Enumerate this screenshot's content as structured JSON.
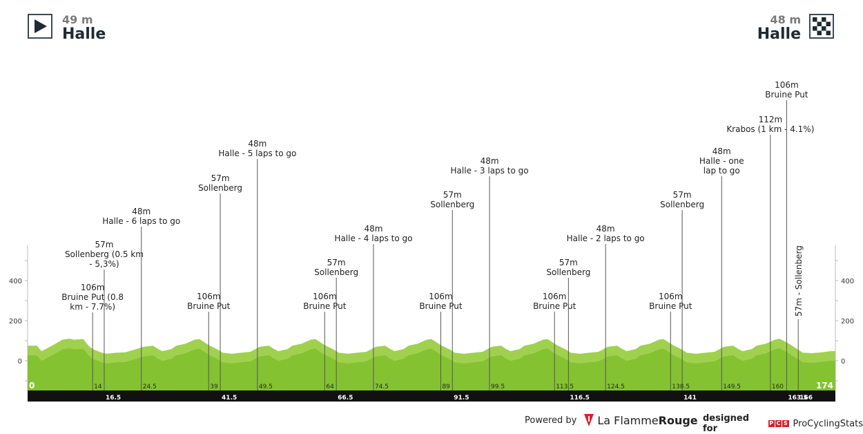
{
  "header": {
    "start_altitude": "49 m",
    "start_city": "Halle",
    "finish_altitude": "48 m",
    "finish_city": "Halle",
    "start_icon": "play-triangle-icon",
    "finish_icon": "checkered-flag-icon"
  },
  "footer": {
    "powered_by": "Powered by",
    "brand_a": "La Flamme",
    "brand_b": "Rouge",
    "designed_for": "designed for",
    "pcs_letters": [
      "P",
      "C",
      "S"
    ],
    "pcs_name": "ProCyclingStats"
  },
  "colors": {
    "profile_light": "#9fd14e",
    "profile_dark": "#84c232",
    "baseline_bar": "#111111",
    "marker_line": "#555555",
    "brand_red": "#d8202a"
  },
  "chart_data": {
    "type": "area",
    "x_unit": "km",
    "y_unit": "m",
    "xlim": [
      0,
      174
    ],
    "ylim": [
      -150,
      580
    ],
    "yticks": [
      0,
      200,
      400
    ],
    "ytick_labels": [
      "0",
      "200",
      "400"
    ],
    "start_label": "0",
    "finish_label": "174",
    "km_marks_upper": [
      "14",
      "24.5",
      "39",
      "49.5",
      "64",
      "74.5",
      "89",
      "99.5",
      "113.5",
      "124.5",
      "138.5",
      "149.5",
      "160",
      "174"
    ],
    "km_marks_lower": [
      "16.5",
      "41.5",
      "66.5",
      "91.5",
      "116.5",
      "141",
      "163.5",
      "166"
    ],
    "km_marks_upper_values": [
      14,
      24.5,
      39,
      49.5,
      64,
      74.5,
      89,
      99.5,
      113.5,
      124.5,
      138.5,
      149.5,
      160
    ],
    "km_marks_lower_values": [
      16.5,
      41.5,
      66.5,
      91.5,
      116.5,
      141,
      163.5,
      166
    ],
    "profile": {
      "x": [
        0,
        2,
        3,
        4,
        5,
        6,
        7.5,
        9,
        10,
        12,
        13,
        14,
        16,
        17,
        19,
        21,
        23,
        25,
        27,
        28,
        29,
        31,
        32,
        34,
        36,
        37,
        39,
        41,
        42,
        44,
        46,
        48,
        50,
        52,
        53,
        54,
        56,
        57,
        59,
        61,
        62,
        64,
        66,
        67,
        69,
        71,
        73,
        75,
        77,
        78,
        79,
        81,
        82,
        84,
        86,
        87,
        89,
        91,
        92,
        94,
        96,
        98,
        100,
        102,
        103,
        104,
        106,
        107,
        109,
        111,
        112,
        114,
        116,
        117,
        119,
        121,
        123,
        125,
        127,
        128,
        129,
        131,
        132,
        134,
        136,
        137,
        139,
        141,
        142,
        144,
        146,
        148,
        150,
        152,
        153,
        154,
        156,
        157,
        159,
        161,
        162,
        164,
        166,
        167,
        169,
        171,
        173,
        174
      ],
      "y": [
        75,
        75,
        48,
        60,
        72,
        85,
        105,
        110,
        105,
        108,
        78,
        58,
        40,
        35,
        40,
        42,
        55,
        70,
        75,
        60,
        48,
        58,
        75,
        85,
        105,
        108,
        78,
        55,
        40,
        35,
        40,
        45,
        70,
        75,
        60,
        48,
        58,
        75,
        85,
        105,
        108,
        78,
        55,
        40,
        35,
        40,
        45,
        70,
        75,
        60,
        48,
        58,
        75,
        85,
        105,
        108,
        78,
        55,
        40,
        35,
        40,
        45,
        70,
        75,
        60,
        48,
        58,
        75,
        85,
        105,
        108,
        78,
        55,
        40,
        35,
        40,
        45,
        70,
        75,
        60,
        48,
        58,
        75,
        85,
        105,
        108,
        78,
        55,
        40,
        35,
        40,
        45,
        70,
        75,
        60,
        48,
        58,
        75,
        85,
        105,
        110,
        85,
        55,
        40,
        38,
        42,
        48,
        48
      ]
    },
    "annotations": [
      {
        "km": 14,
        "lines": [
          "106m",
          "Bruine Put (0.8",
          "km - 7.7%)"
        ],
        "alt": 106
      },
      {
        "km": 16.5,
        "lines": [
          "57m",
          "Sollenberg (0.5 km",
          "- 5,3%)"
        ],
        "alt": 57
      },
      {
        "km": 24.5,
        "lines": [
          "48m",
          "Halle - 6 laps to go"
        ],
        "alt": 48
      },
      {
        "km": 39,
        "lines": [
          "106m",
          "Bruine Put"
        ],
        "alt": 106
      },
      {
        "km": 41.5,
        "lines": [
          "57m",
          "Sollenberg"
        ],
        "alt": 57
      },
      {
        "km": 49.5,
        "lines": [
          "48m",
          "Halle - 5 laps to go"
        ],
        "alt": 48
      },
      {
        "km": 64,
        "lines": [
          "106m",
          "Bruine Put"
        ],
        "alt": 106
      },
      {
        "km": 66.5,
        "lines": [
          "57m",
          "Sollenberg"
        ],
        "alt": 57
      },
      {
        "km": 74.5,
        "lines": [
          "48m",
          "Halle - 4 laps to go"
        ],
        "alt": 48
      },
      {
        "km": 89,
        "lines": [
          "106m",
          "Bruine Put"
        ],
        "alt": 106
      },
      {
        "km": 91.5,
        "lines": [
          "57m",
          "Sollenberg"
        ],
        "alt": 57
      },
      {
        "km": 99.5,
        "lines": [
          "48m",
          "Halle - 3 laps to go"
        ],
        "alt": 48
      },
      {
        "km": 113.5,
        "lines": [
          "106m",
          "Bruine Put"
        ],
        "alt": 106
      },
      {
        "km": 116.5,
        "lines": [
          "57m",
          "Sollenberg"
        ],
        "alt": 57
      },
      {
        "km": 124.5,
        "lines": [
          "48m",
          "Halle - 2 laps to go"
        ],
        "alt": 48
      },
      {
        "km": 138.5,
        "lines": [
          "106m",
          "Bruine Put"
        ],
        "alt": 106
      },
      {
        "km": 141,
        "lines": [
          "57m",
          "Sollenberg"
        ],
        "alt": 57
      },
      {
        "km": 149.5,
        "lines": [
          "48m",
          "Halle - one",
          "lap to go"
        ],
        "alt": 48
      },
      {
        "km": 160,
        "lines": [
          "112m",
          "Krabos (1 km - 4.1%)"
        ],
        "alt": 112
      },
      {
        "km": 163.5,
        "lines": [
          "106m",
          "Bruine Put"
        ],
        "alt": 106
      },
      {
        "km": 166,
        "lines": [
          "57m - Sollenberg"
        ],
        "alt": 57,
        "vertical": true
      }
    ]
  }
}
